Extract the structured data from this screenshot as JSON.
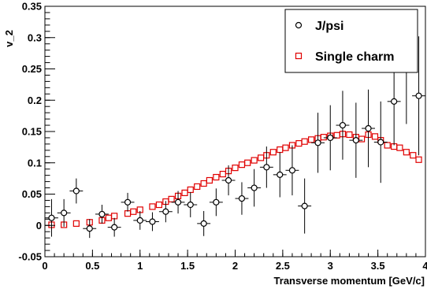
{
  "chart_data": {
    "type": "scatter",
    "xlabel": "Transverse momentum [GeV/c]",
    "ylabel": "v_2",
    "xlim": [
      0,
      4
    ],
    "ylim": [
      -0.05,
      0.35
    ],
    "x_ticks": [
      0,
      0.5,
      1,
      1.5,
      2,
      2.5,
      3,
      3.5,
      4
    ],
    "x_tick_labels": [
      "0",
      "0.5",
      "1",
      "1.5",
      "2",
      "2.5",
      "3",
      "3.5",
      "4"
    ],
    "y_ticks": [
      -0.05,
      0,
      0.05,
      0.1,
      0.15,
      0.2,
      0.25,
      0.3,
      0.35
    ],
    "y_tick_labels": [
      "-0.05",
      "0",
      "0.05",
      "0.1",
      "0.15",
      "0.2",
      "0.25",
      "0.3",
      "0.35"
    ],
    "legend_position": "top-right",
    "grid": false,
    "series": [
      {
        "name": "J/psi",
        "marker": "open-circle",
        "color": "#000000",
        "points": [
          {
            "x": 0.07,
            "y": 0.012,
            "ex": 0.07,
            "ey": 0.03
          },
          {
            "x": 0.2,
            "y": 0.02,
            "ex": 0.07,
            "ey": 0.022
          },
          {
            "x": 0.33,
            "y": 0.055,
            "ex": 0.07,
            "ey": 0.02
          },
          {
            "x": 0.47,
            "y": -0.005,
            "ex": 0.07,
            "ey": 0.015
          },
          {
            "x": 0.6,
            "y": 0.018,
            "ex": 0.07,
            "ey": 0.015
          },
          {
            "x": 0.73,
            "y": -0.003,
            "ex": 0.07,
            "ey": 0.015
          },
          {
            "x": 0.87,
            "y": 0.037,
            "ex": 0.07,
            "ey": 0.015
          },
          {
            "x": 1.0,
            "y": 0.008,
            "ex": 0.07,
            "ey": 0.015
          },
          {
            "x": 1.13,
            "y": 0.006,
            "ex": 0.07,
            "ey": 0.015
          },
          {
            "x": 1.27,
            "y": 0.022,
            "ex": 0.07,
            "ey": 0.017
          },
          {
            "x": 1.4,
            "y": 0.037,
            "ex": 0.07,
            "ey": 0.018
          },
          {
            "x": 1.53,
            "y": 0.033,
            "ex": 0.07,
            "ey": 0.02
          },
          {
            "x": 1.67,
            "y": 0.003,
            "ex": 0.07,
            "ey": 0.02
          },
          {
            "x": 1.8,
            "y": 0.037,
            "ex": 0.07,
            "ey": 0.022
          },
          {
            "x": 1.93,
            "y": 0.072,
            "ex": 0.07,
            "ey": 0.024
          },
          {
            "x": 2.07,
            "y": 0.043,
            "ex": 0.07,
            "ey": 0.026
          },
          {
            "x": 2.2,
            "y": 0.06,
            "ex": 0.07,
            "ey": 0.03
          },
          {
            "x": 2.33,
            "y": 0.093,
            "ex": 0.07,
            "ey": 0.033
          },
          {
            "x": 2.47,
            "y": 0.081,
            "ex": 0.07,
            "ey": 0.036
          },
          {
            "x": 2.6,
            "y": 0.088,
            "ex": 0.07,
            "ey": 0.04
          },
          {
            "x": 2.73,
            "y": 0.031,
            "ex": 0.07,
            "ey": 0.044
          },
          {
            "x": 2.87,
            "y": 0.132,
            "ex": 0.07,
            "ey": 0.048
          },
          {
            "x": 3.0,
            "y": 0.14,
            "ex": 0.07,
            "ey": 0.052
          },
          {
            "x": 3.13,
            "y": 0.16,
            "ex": 0.07,
            "ey": 0.055
          },
          {
            "x": 3.27,
            "y": 0.136,
            "ex": 0.07,
            "ey": 0.06
          },
          {
            "x": 3.4,
            "y": 0.155,
            "ex": 0.07,
            "ey": 0.062
          },
          {
            "x": 3.53,
            "y": 0.133,
            "ex": 0.07,
            "ey": 0.065
          },
          {
            "x": 3.67,
            "y": 0.198,
            "ex": 0.07,
            "ey": 0.07
          },
          {
            "x": 3.8,
            "y": 0.252,
            "ex": 0.07,
            "ey": 0.09
          },
          {
            "x": 3.93,
            "y": 0.207,
            "ex": 0.07,
            "ey": 0.095
          }
        ]
      },
      {
        "name": "Single charm",
        "marker": "open-square",
        "color": "#e00000",
        "points": [
          {
            "x": 0.07,
            "y": 0.001
          },
          {
            "x": 0.2,
            "y": 0.001
          },
          {
            "x": 0.33,
            "y": 0.003
          },
          {
            "x": 0.47,
            "y": 0.005
          },
          {
            "x": 0.6,
            "y": 0.008
          },
          {
            "x": 0.67,
            "y": 0.012
          },
          {
            "x": 0.73,
            "y": 0.015
          },
          {
            "x": 0.87,
            "y": 0.019
          },
          {
            "x": 0.93,
            "y": 0.022
          },
          {
            "x": 1.0,
            "y": 0.025
          },
          {
            "x": 1.13,
            "y": 0.03
          },
          {
            "x": 1.2,
            "y": 0.033
          },
          {
            "x": 1.27,
            "y": 0.038
          },
          {
            "x": 1.33,
            "y": 0.042
          },
          {
            "x": 1.4,
            "y": 0.047
          },
          {
            "x": 1.47,
            "y": 0.052
          },
          {
            "x": 1.53,
            "y": 0.057
          },
          {
            "x": 1.6,
            "y": 0.062
          },
          {
            "x": 1.67,
            "y": 0.067
          },
          {
            "x": 1.73,
            "y": 0.072
          },
          {
            "x": 1.8,
            "y": 0.077
          },
          {
            "x": 1.87,
            "y": 0.082
          },
          {
            "x": 1.93,
            "y": 0.087
          },
          {
            "x": 2.0,
            "y": 0.092
          },
          {
            "x": 2.07,
            "y": 0.097
          },
          {
            "x": 2.13,
            "y": 0.1
          },
          {
            "x": 2.2,
            "y": 0.104
          },
          {
            "x": 2.27,
            "y": 0.108
          },
          {
            "x": 2.33,
            "y": 0.112
          },
          {
            "x": 2.4,
            "y": 0.117
          },
          {
            "x": 2.47,
            "y": 0.121
          },
          {
            "x": 2.53,
            "y": 0.124
          },
          {
            "x": 2.6,
            "y": 0.128
          },
          {
            "x": 2.67,
            "y": 0.131
          },
          {
            "x": 2.73,
            "y": 0.134
          },
          {
            "x": 2.8,
            "y": 0.137
          },
          {
            "x": 2.87,
            "y": 0.139
          },
          {
            "x": 2.93,
            "y": 0.141
          },
          {
            "x": 3.0,
            "y": 0.143
          },
          {
            "x": 3.07,
            "y": 0.144
          },
          {
            "x": 3.13,
            "y": 0.146
          },
          {
            "x": 3.2,
            "y": 0.145
          },
          {
            "x": 3.27,
            "y": 0.141
          },
          {
            "x": 3.33,
            "y": 0.138
          },
          {
            "x": 3.4,
            "y": 0.145
          },
          {
            "x": 3.47,
            "y": 0.142
          },
          {
            "x": 3.53,
            "y": 0.136
          },
          {
            "x": 3.6,
            "y": 0.128
          },
          {
            "x": 3.67,
            "y": 0.126
          },
          {
            "x": 3.73,
            "y": 0.124
          },
          {
            "x": 3.8,
            "y": 0.117
          },
          {
            "x": 3.87,
            "y": 0.112
          },
          {
            "x": 3.93,
            "y": 0.105
          }
        ]
      }
    ]
  }
}
